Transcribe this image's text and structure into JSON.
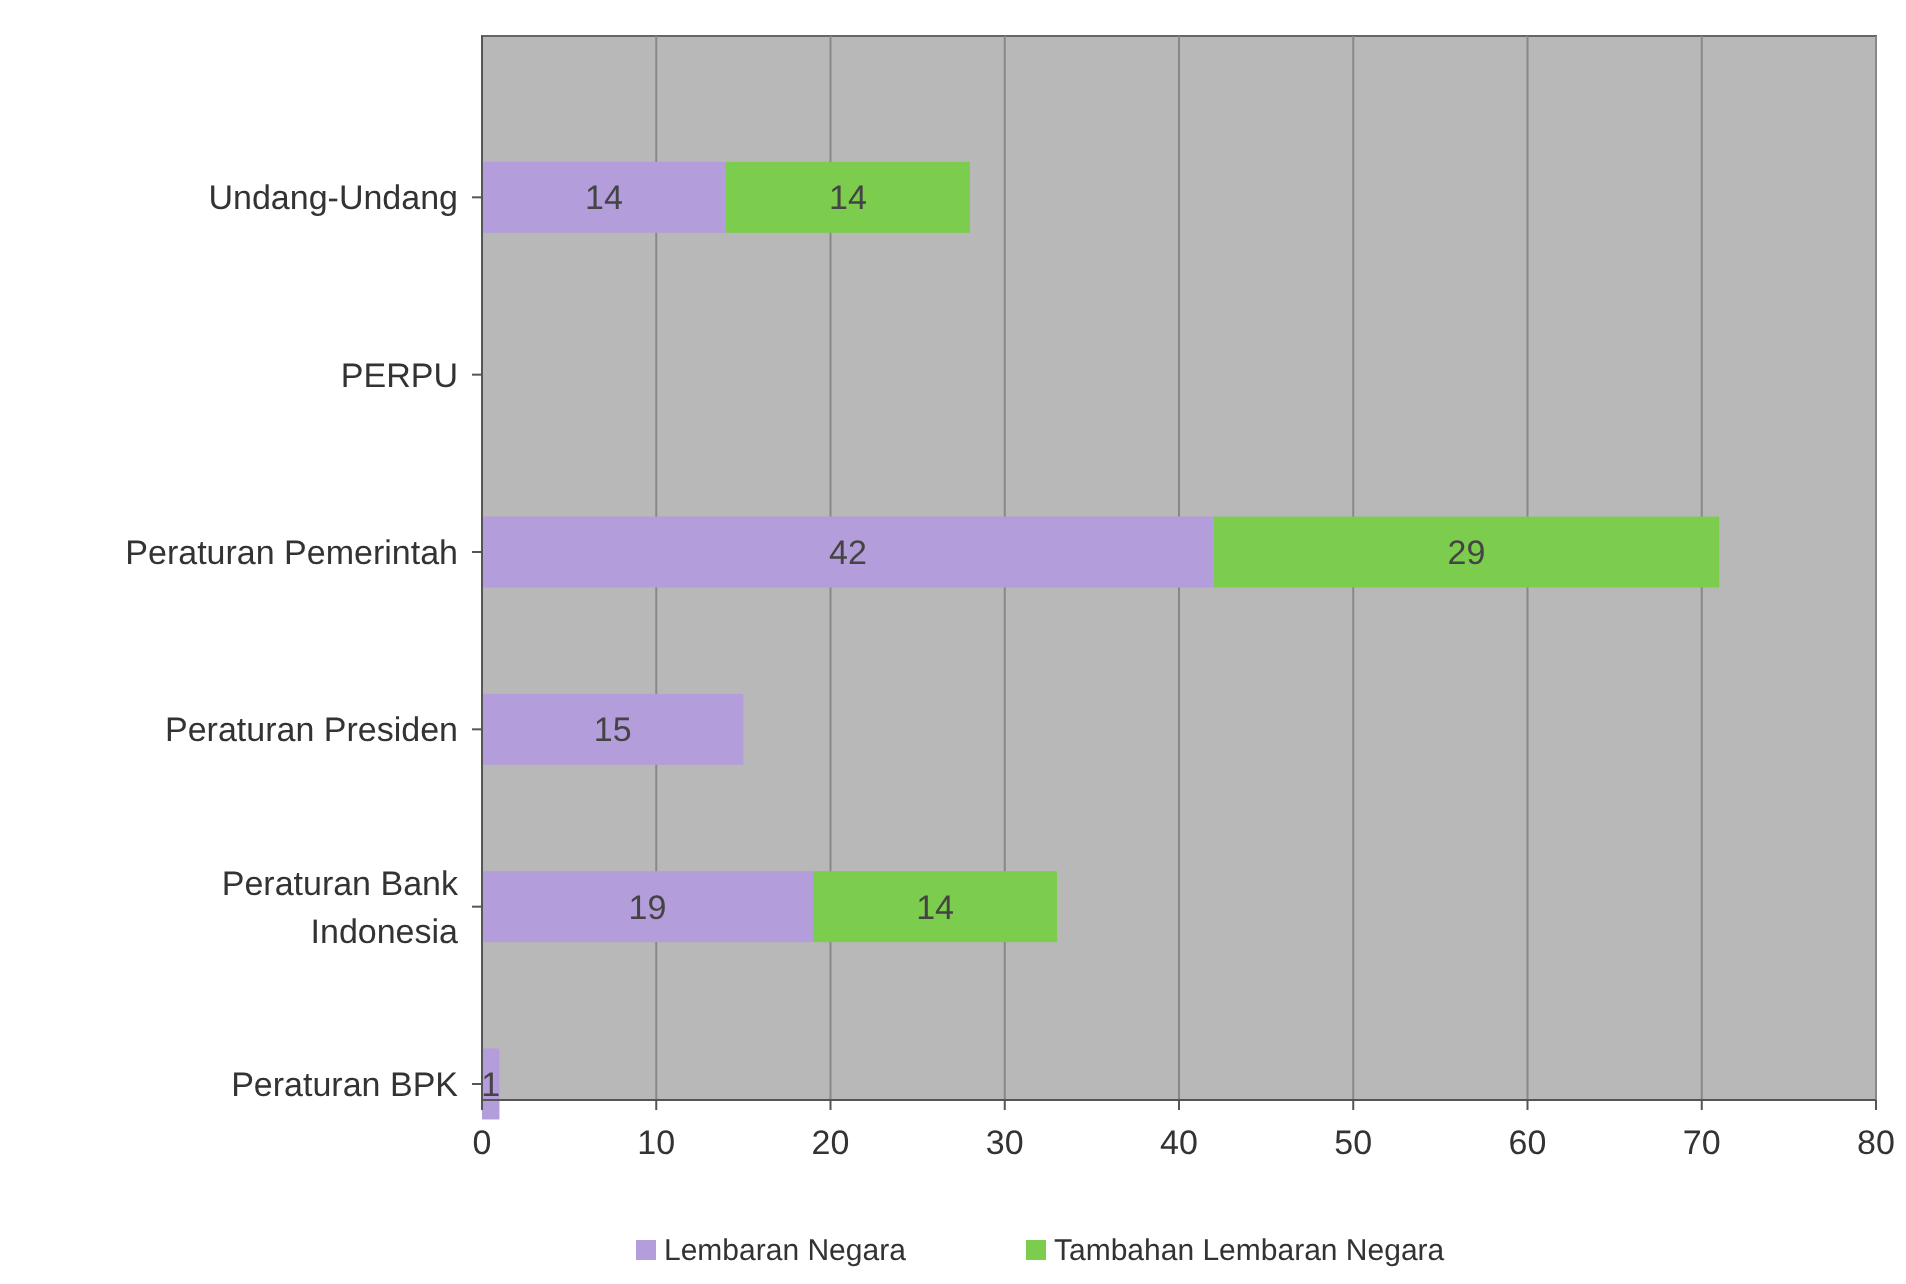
{
  "chart_data": {
    "type": "bar",
    "orientation": "horizontal",
    "stacked": true,
    "categories": [
      "Undang-Undang",
      "PERPU",
      "Peraturan Pemerintah",
      "Peraturan Presiden",
      "Peraturan Bank Indonesia",
      "Peraturan BPK"
    ],
    "series": [
      {
        "name": "Lembaran Negara",
        "color": "#b39ddb",
        "values": [
          14,
          null,
          42,
          15,
          19,
          1
        ]
      },
      {
        "name": "Tambahan Lembaran Negara",
        "color": "#7ccd4e",
        "values": [
          14,
          null,
          29,
          null,
          14,
          null
        ]
      }
    ],
    "xlim": [
      0,
      80
    ],
    "xticks": [
      0,
      10,
      20,
      30,
      40,
      50,
      60,
      70,
      80
    ],
    "grid": "x",
    "legend": "bottom",
    "data_labels": true
  }
}
